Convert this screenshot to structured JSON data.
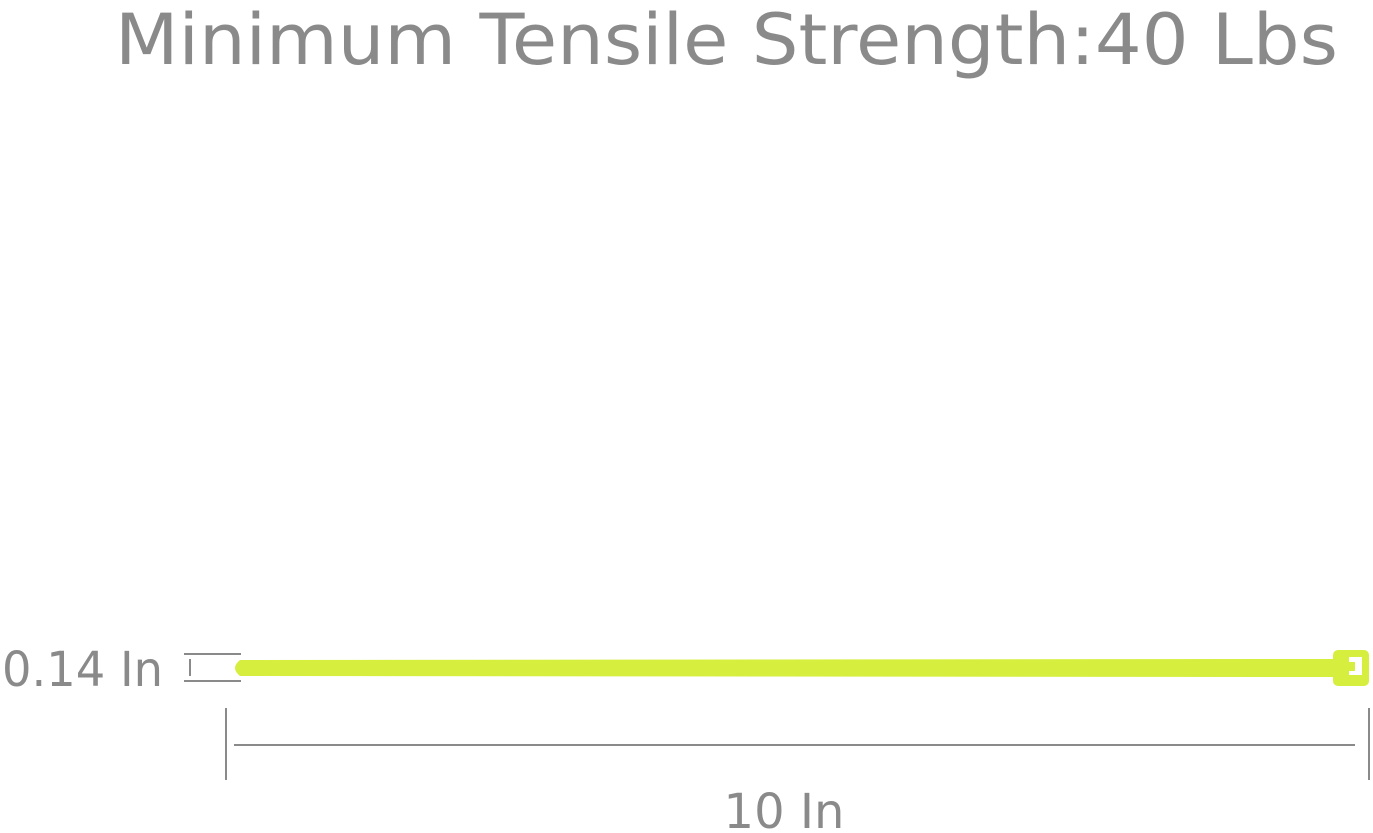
{
  "title": "Minimum Tensile Strength:40 Lbs",
  "width_label": "0.14 In",
  "length_label": "10 In",
  "colors": {
    "text": "#8a8a8a",
    "cable_tie": "#d6ee3e",
    "dimension_lines": "#8a8a8a"
  }
}
